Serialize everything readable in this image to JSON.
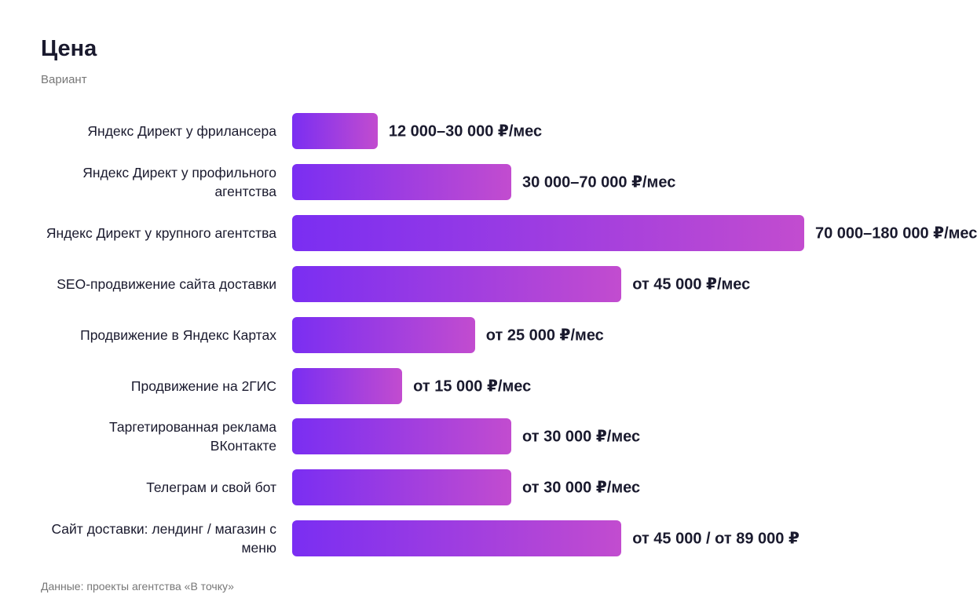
{
  "chart_data": {
    "type": "bar",
    "orientation": "horizontal",
    "title": "Цена",
    "subtitle": "Вариант",
    "categories": [
      "Яндекс Директ у фрилансера",
      "Яндекс Директ у профильного агентства",
      "Яндекс Директ у крупного агентства",
      "SEO-продвижение сайта доставки",
      "Продвижение в Яндекс Картах",
      "Продвижение на 2ГИС",
      "Таргетированная реклама ВКонтакте",
      "Телеграм и свой бот",
      "Сайт доставки: лендинг / магазин с меню"
    ],
    "values": [
      16.7,
      42.8,
      100,
      64.3,
      35.7,
      21.5,
      42.8,
      42.8,
      64.3
    ],
    "bar_labels": [
      "12 000–30 000 ₽/мес",
      "30 000–70 000 ₽/мес",
      "70 000–180 000 ₽/мес",
      "от 45 000 ₽/мес",
      "от 25 000 ₽/мес",
      "от 15 000 ₽/мес",
      "от 30 000 ₽/мес",
      "от 30 000 ₽/мес",
      "от 45 000 / от 89 000 ₽"
    ],
    "xlim": [
      0,
      100
    ],
    "color": [
      "#7a2ef2",
      "#c24ccf"
    ],
    "source": "Данные: проекты агентства «В точку»"
  }
}
